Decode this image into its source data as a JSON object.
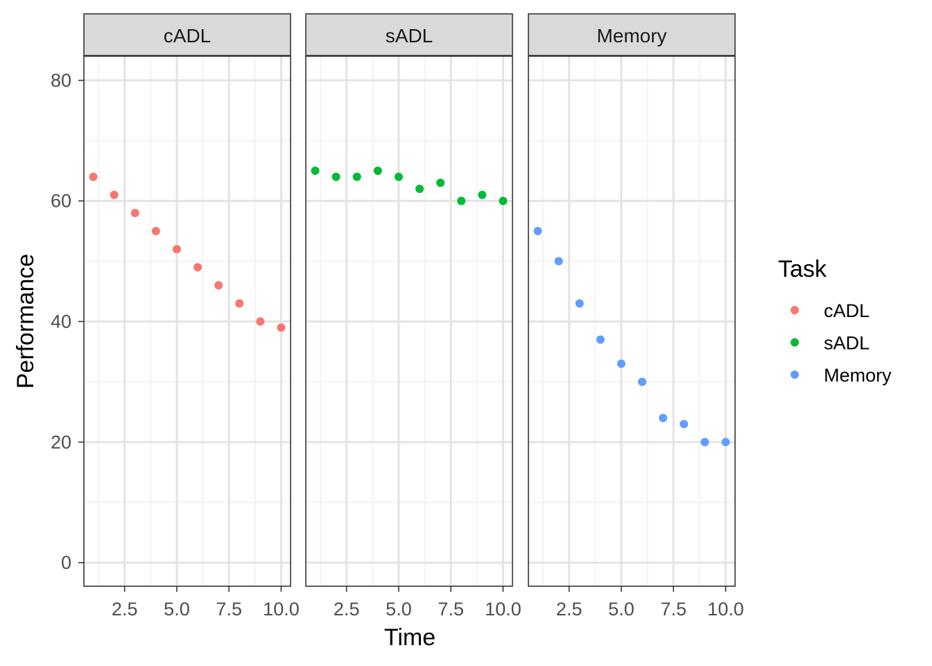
{
  "chart_data": {
    "type": "scatter",
    "facet_by": "Task",
    "xlabel": "Time",
    "ylabel": "Performance",
    "xlim": [
      0.55,
      10.45
    ],
    "ylim": [
      -3.9,
      84
    ],
    "x_ticks": [
      2.5,
      5.0,
      7.5,
      10.0
    ],
    "x_tick_labels": [
      "2.5",
      "5.0",
      "7.5",
      "10.0"
    ],
    "x_minor": [
      1.25,
      3.75,
      6.25,
      8.75
    ],
    "y_ticks": [
      0,
      20,
      40,
      60,
      80
    ],
    "y_tick_labels": [
      "0",
      "20",
      "40",
      "60",
      "80"
    ],
    "y_minor": [
      10,
      30,
      50,
      70
    ],
    "legend": {
      "title": "Task",
      "placement": "right",
      "entries": [
        "cADL",
        "sADL",
        "Memory"
      ]
    },
    "series": [
      {
        "name": "cADL",
        "color": "#F8766D",
        "x": [
          1,
          2,
          3,
          4,
          5,
          6,
          7,
          8,
          9,
          10
        ],
        "y": [
          64,
          61,
          58,
          55,
          52,
          49,
          46,
          43,
          40,
          39
        ]
      },
      {
        "name": "sADL",
        "color": "#00BA38",
        "x": [
          1,
          2,
          3,
          4,
          5,
          6,
          7,
          8,
          9,
          10
        ],
        "y": [
          65,
          64,
          64,
          65,
          64,
          62,
          63,
          60,
          61,
          60
        ]
      },
      {
        "name": "Memory",
        "color": "#619CFF",
        "x": [
          1,
          2,
          3,
          4,
          5,
          6,
          7,
          8,
          9,
          10
        ],
        "y": [
          55,
          50,
          43,
          37,
          33,
          30,
          24,
          23,
          20,
          20
        ]
      }
    ]
  }
}
